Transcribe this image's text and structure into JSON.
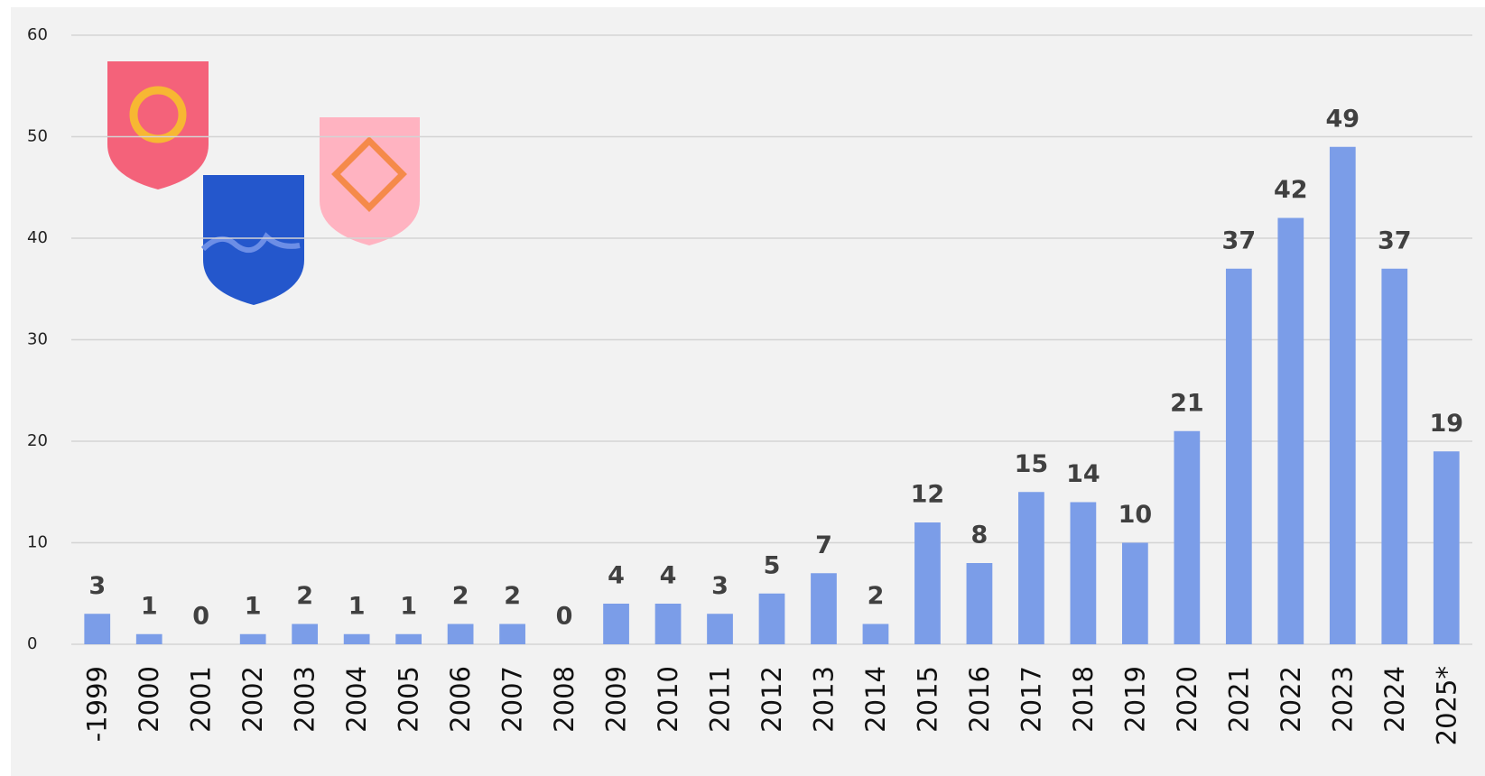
{
  "chart_data": {
    "type": "bar",
    "categories": [
      "-1999",
      "2000",
      "2001",
      "2002",
      "2003",
      "2004",
      "2005",
      "2006",
      "2007",
      "2008",
      "2009",
      "2010",
      "2011",
      "2012",
      "2013",
      "2014",
      "2015",
      "2016",
      "2017",
      "2018",
      "2019",
      "2020",
      "2021",
      "2022",
      "2023",
      "2024",
      "2025*"
    ],
    "values": [
      3,
      1,
      0,
      1,
      2,
      1,
      1,
      2,
      2,
      0,
      4,
      4,
      3,
      5,
      7,
      2,
      12,
      8,
      15,
      14,
      10,
      21,
      37,
      42,
      49,
      37,
      19
    ],
    "color": "#7b9de8",
    "ylim": [
      0,
      60
    ],
    "yticks": [
      0,
      10,
      20,
      30,
      40,
      50,
      60
    ],
    "grid": true,
    "data_labels": true
  }
}
